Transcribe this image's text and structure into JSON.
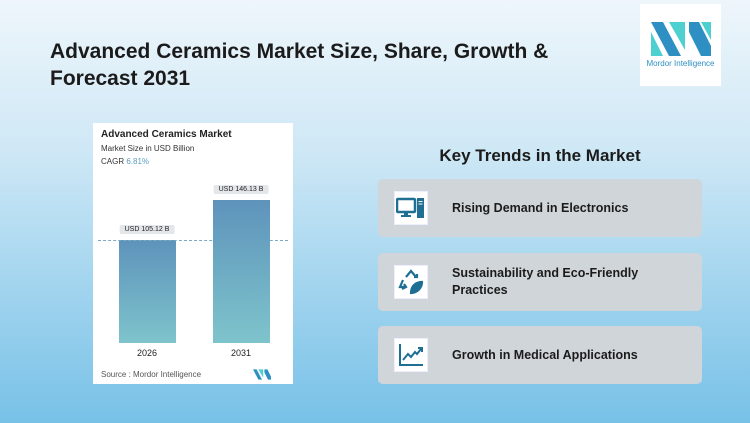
{
  "header": {
    "title": "Advanced Ceramics Market Size, Share, Growth & Forecast 2031"
  },
  "logo": {
    "text": "Mordor Intelligence",
    "colors": [
      "#2e8fc2",
      "#4ecfd0"
    ]
  },
  "chart_data": {
    "type": "bar",
    "title": "Advanced Ceramics Market",
    "subtitle": "Market Size in USD Billion",
    "cagr_label": "CAGR",
    "cagr_value": "6.81%",
    "categories": [
      "2026",
      "2031"
    ],
    "values": [
      105.12,
      146.13
    ],
    "data_labels": [
      "USD 105.12 B",
      "USD 146.13 B"
    ],
    "source": "Source :  Mordor Intelligence",
    "colors": {
      "bar_top": "#5e93bb",
      "bar_bottom": "#7ec4cc"
    }
  },
  "trends": {
    "heading": "Key Trends in the Market",
    "items": [
      {
        "label": "Rising Demand in Electronics",
        "icon": "computer-icon"
      },
      {
        "label": "Sustainability and Eco-Friendly Practices",
        "icon": "recycle-leaf-icon"
      },
      {
        "label": "Growth in Medical Applications",
        "icon": "growth-chart-icon"
      }
    ]
  }
}
